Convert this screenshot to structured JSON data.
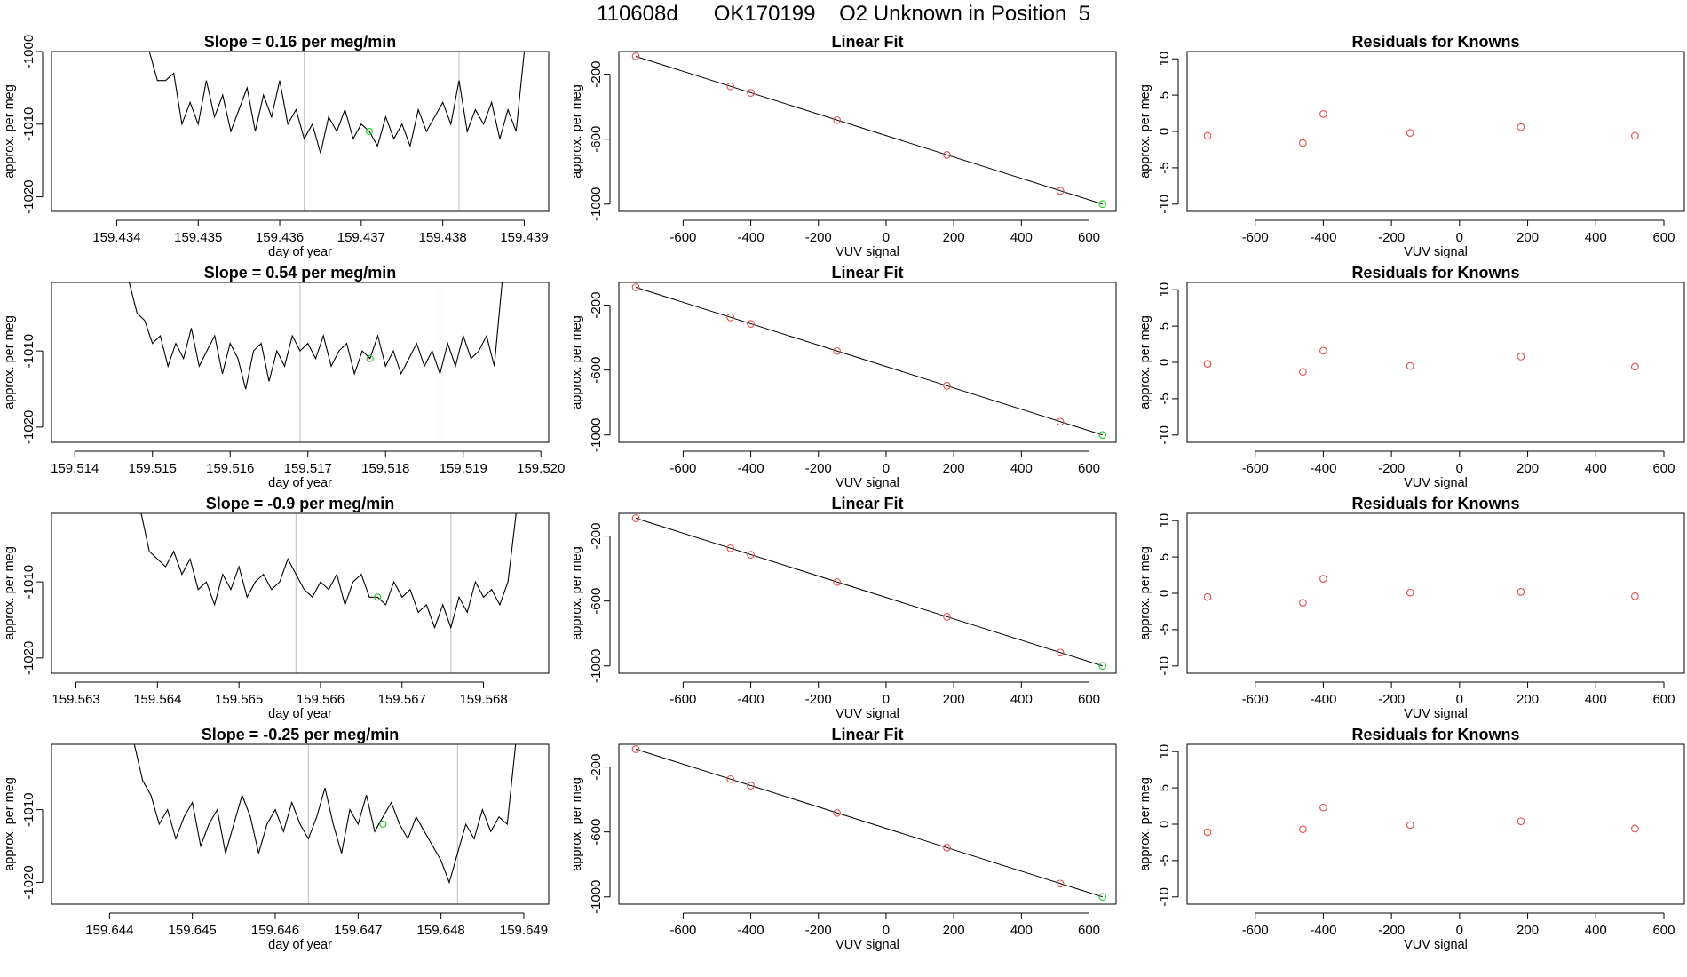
{
  "page_title": "110608d      OK170199    O2 Unknown in Position  5",
  "colors": {
    "line": "#000000",
    "known_point": "#e0504a",
    "unknown_point": "#33cc33",
    "event_line": "#c8c8c8",
    "axis": "#000000"
  },
  "chart_data": [
    {
      "type": "line",
      "panel": "time-series-1",
      "title": "Slope =  0.16  per meg/min",
      "xlabel": "day of year",
      "ylabel": "approx. per meg",
      "xlim": [
        159.4332,
        159.4393
      ],
      "ylim": [
        -1022,
        -1000
      ],
      "xticks": [
        159.434,
        159.435,
        159.436,
        159.437,
        159.438,
        159.439
      ],
      "xtick_labels": [
        "159.434",
        "159.435",
        "159.436",
        "159.437",
        "159.438",
        "159.439"
      ],
      "yticks": [
        -1020,
        -1010,
        -1000
      ],
      "ytick_labels": [
        "-1020",
        "-1010",
        "-1000"
      ],
      "event_lines": [
        159.4363,
        159.4382
      ],
      "unknown_point": {
        "x": 159.4371,
        "y": -1011
      },
      "x": [
        159.4344,
        159.4345,
        159.4346,
        159.4347,
        159.4348,
        159.4349,
        159.435,
        159.4351,
        159.4352,
        159.4353,
        159.4354,
        159.4355,
        159.4356,
        159.4357,
        159.4358,
        159.4359,
        159.436,
        159.4361,
        159.4362,
        159.4363,
        159.4364,
        159.4365,
        159.4366,
        159.4367,
        159.4368,
        159.4369,
        159.437,
        159.4371,
        159.4372,
        159.4373,
        159.4374,
        159.4375,
        159.4376,
        159.4377,
        159.4378,
        159.4379,
        159.438,
        159.4381,
        159.4382,
        159.4383,
        159.4384,
        159.4385,
        159.4386,
        159.4387,
        159.4388,
        159.4389,
        159.439
      ],
      "y": [
        -1000,
        -1004,
        -1004,
        -1003,
        -1010,
        -1007,
        -1010,
        -1004,
        -1009,
        -1006,
        -1011,
        -1008,
        -1005,
        -1011,
        -1006,
        -1009,
        -1004,
        -1010,
        -1008,
        -1012,
        -1010,
        -1014,
        -1009,
        -1011,
        -1008,
        -1012,
        -1010,
        -1011,
        -1013,
        -1009,
        -1012,
        -1010,
        -1013,
        -1008,
        -1011,
        -1009,
        -1007,
        -1010,
        -1004,
        -1011,
        -1008,
        -1010,
        -1007,
        -1012,
        -1008,
        -1011,
        -1000
      ]
    },
    {
      "type": "line",
      "panel": "time-series-2",
      "title": "Slope =  0.54  per meg/min",
      "xlabel": "day of year",
      "ylabel": "approx. per meg",
      "xlim": [
        159.5137,
        159.5201
      ],
      "ylim": [
        -1022,
        -1001
      ],
      "xticks": [
        159.514,
        159.515,
        159.516,
        159.517,
        159.518,
        159.519,
        159.52
      ],
      "xtick_labels": [
        "159.514",
        "159.515",
        "159.516",
        "159.517",
        "159.518",
        "159.519",
        "159.520"
      ],
      "yticks": [
        -1020,
        -1010
      ],
      "ytick_labels": [
        "-1020",
        "-1010"
      ],
      "event_lines": [
        159.5169,
        159.5187
      ],
      "unknown_point": {
        "x": 159.5178,
        "y": -1011
      },
      "x": [
        159.5147,
        159.5148,
        159.5149,
        159.515,
        159.5151,
        159.5152,
        159.5153,
        159.5154,
        159.5155,
        159.5156,
        159.5157,
        159.5158,
        159.5159,
        159.516,
        159.5161,
        159.5162,
        159.5163,
        159.5164,
        159.5165,
        159.5166,
        159.5167,
        159.5168,
        159.5169,
        159.517,
        159.5171,
        159.5172,
        159.5173,
        159.5174,
        159.5175,
        159.5176,
        159.5177,
        159.5178,
        159.5179,
        159.518,
        159.5181,
        159.5182,
        159.5183,
        159.5184,
        159.5185,
        159.5186,
        159.5187,
        159.5188,
        159.5189,
        159.519,
        159.5191,
        159.5192,
        159.5193,
        159.5194,
        159.5195
      ],
      "y": [
        -1001,
        -1005,
        -1006,
        -1009,
        -1008,
        -1012,
        -1009,
        -1011,
        -1007,
        -1012,
        -1010,
        -1008,
        -1013,
        -1009,
        -1011,
        -1015,
        -1010,
        -1009,
        -1014,
        -1010,
        -1012,
        -1008,
        -1010,
        -1009,
        -1011,
        -1008,
        -1012,
        -1010,
        -1009,
        -1013,
        -1010,
        -1011,
        -1008,
        -1012,
        -1010,
        -1013,
        -1011,
        -1009,
        -1012,
        -1010,
        -1013,
        -1009,
        -1012,
        -1008,
        -1011,
        -1010,
        -1008,
        -1012,
        -1001
      ]
    },
    {
      "type": "line",
      "panel": "time-series-3",
      "title": "Slope =  -0.9  per meg/min",
      "xlabel": "day of year",
      "ylabel": "approx. per meg",
      "xlim": [
        159.5627,
        159.5688
      ],
      "ylim": [
        -1022,
        -1001
      ],
      "xticks": [
        159.563,
        159.564,
        159.565,
        159.566,
        159.567,
        159.568
      ],
      "xtick_labels": [
        "159.563",
        "159.564",
        "159.565",
        "159.566",
        "159.567",
        "159.568"
      ],
      "yticks": [
        -1020,
        -1010
      ],
      "ytick_labels": [
        "-1020",
        "-1010"
      ],
      "event_lines": [
        159.5657,
        159.5676
      ],
      "unknown_point": {
        "x": 159.5667,
        "y": -1012
      },
      "x": [
        159.5638,
        159.5639,
        159.564,
        159.5641,
        159.5642,
        159.5643,
        159.5644,
        159.5645,
        159.5646,
        159.5647,
        159.5648,
        159.5649,
        159.565,
        159.5651,
        159.5652,
        159.5653,
        159.5654,
        159.5655,
        159.5656,
        159.5657,
        159.5658,
        159.5659,
        159.566,
        159.5661,
        159.5662,
        159.5663,
        159.5664,
        159.5665,
        159.5666,
        159.5667,
        159.5668,
        159.5669,
        159.567,
        159.5671,
        159.5672,
        159.5673,
        159.5674,
        159.5675,
        159.5676,
        159.5677,
        159.5678,
        159.5679,
        159.568,
        159.5681,
        159.5682,
        159.5683,
        159.5684
      ],
      "y": [
        -1001,
        -1006,
        -1007,
        -1008,
        -1006,
        -1009,
        -1007,
        -1011,
        -1010,
        -1013,
        -1009,
        -1011,
        -1008,
        -1012,
        -1010,
        -1009,
        -1011,
        -1010,
        -1007,
        -1009,
        -1011,
        -1012,
        -1010,
        -1011,
        -1009,
        -1013,
        -1010,
        -1009,
        -1012,
        -1012,
        -1013,
        -1010,
        -1012,
        -1011,
        -1014,
        -1013,
        -1016,
        -1013,
        -1016,
        -1012,
        -1014,
        -1010,
        -1012,
        -1011,
        -1013,
        -1010,
        -1001
      ]
    },
    {
      "type": "line",
      "panel": "time-series-4",
      "title": "Slope =  -0.25  per meg/min",
      "xlabel": "day of year",
      "ylabel": "approx. per meg",
      "xlim": [
        159.6433,
        159.6493
      ],
      "ylim": [
        -1023,
        -1001
      ],
      "xticks": [
        159.644,
        159.645,
        159.646,
        159.647,
        159.648,
        159.649
      ],
      "xtick_labels": [
        "159.644",
        "159.645",
        "159.646",
        "159.647",
        "159.648",
        "159.649"
      ],
      "yticks": [
        -1020,
        -1010
      ],
      "ytick_labels": [
        "-1020",
        "-1010"
      ],
      "event_lines": [
        159.6464,
        159.6482
      ],
      "unknown_point": {
        "x": 159.6473,
        "y": -1012
      },
      "x": [
        159.6443,
        159.6444,
        159.6445,
        159.6446,
        159.6447,
        159.6448,
        159.6449,
        159.645,
        159.6451,
        159.6452,
        159.6453,
        159.6454,
        159.6455,
        159.6456,
        159.6457,
        159.6458,
        159.6459,
        159.646,
        159.6461,
        159.6462,
        159.6463,
        159.6464,
        159.6465,
        159.6466,
        159.6467,
        159.6468,
        159.6469,
        159.647,
        159.6471,
        159.6472,
        159.6473,
        159.6474,
        159.6475,
        159.6476,
        159.6477,
        159.6478,
        159.6479,
        159.648,
        159.6481,
        159.6482,
        159.6483,
        159.6484,
        159.6485,
        159.6486,
        159.6487,
        159.6488,
        159.6489
      ],
      "y": [
        -1001,
        -1006,
        -1008,
        -1012,
        -1010,
        -1014,
        -1011,
        -1009,
        -1015,
        -1012,
        -1010,
        -1016,
        -1012,
        -1008,
        -1011,
        -1016,
        -1012,
        -1010,
        -1013,
        -1009,
        -1012,
        -1014,
        -1011,
        -1007,
        -1012,
        -1016,
        -1010,
        -1012,
        -1008,
        -1013,
        -1011,
        -1009,
        -1012,
        -1014,
        -1011,
        -1013,
        -1015,
        -1017,
        -1020,
        -1016,
        -1012,
        -1014,
        -1010,
        -1013,
        -1011,
        -1012,
        -1001
      ]
    },
    {
      "type": "scatter",
      "panel": "linear-fit-1",
      "title": "Linear Fit",
      "xlabel": "VUV signal",
      "ylabel": "approx. per meg",
      "xlim": [
        -790,
        680
      ],
      "ylim": [
        -1045,
        -60
      ],
      "xticks": [
        -600,
        -400,
        -200,
        0,
        200,
        400,
        600
      ],
      "xtick_labels": [
        "-600",
        "-400",
        "-200",
        "0",
        "200",
        "400",
        "600"
      ],
      "yticks": [
        -1000,
        -600,
        -200
      ],
      "ytick_labels": [
        "-1000",
        "-600",
        "-200"
      ],
      "fit_line": {
        "x": [
          -740,
          640
        ],
        "y": [
          -90,
          -1000
        ]
      },
      "known_points": {
        "x": [
          -740,
          -460,
          -400,
          -145,
          180,
          515
        ],
        "y": [
          -90,
          -275,
          -315,
          -483,
          -697,
          -918
        ]
      },
      "unknown_points": {
        "x": [
          640
        ],
        "y": [
          -1000
        ]
      }
    },
    {
      "type": "scatter",
      "panel": "linear-fit-2",
      "title": "Linear Fit",
      "xlabel": "VUV signal",
      "ylabel": "approx. per meg",
      "xlim": [
        -790,
        680
      ],
      "ylim": [
        -1045,
        -60
      ],
      "xticks": [
        -600,
        -400,
        -200,
        0,
        200,
        400,
        600
      ],
      "xtick_labels": [
        "-600",
        "-400",
        "-200",
        "0",
        "200",
        "400",
        "600"
      ],
      "yticks": [
        -1000,
        -600,
        -200
      ],
      "ytick_labels": [
        "-1000",
        "-600",
        "-200"
      ],
      "fit_line": {
        "x": [
          -740,
          640
        ],
        "y": [
          -90,
          -1000
        ]
      },
      "known_points": {
        "x": [
          -740,
          -460,
          -400,
          -145,
          180,
          515
        ],
        "y": [
          -90,
          -275,
          -315,
          -483,
          -697,
          -918
        ]
      },
      "unknown_points": {
        "x": [
          640
        ],
        "y": [
          -1000
        ]
      }
    },
    {
      "type": "scatter",
      "panel": "linear-fit-3",
      "title": "Linear Fit",
      "xlabel": "VUV signal",
      "ylabel": "approx. per meg",
      "xlim": [
        -790,
        680
      ],
      "ylim": [
        -1045,
        -60
      ],
      "xticks": [
        -600,
        -400,
        -200,
        0,
        200,
        400,
        600
      ],
      "xtick_labels": [
        "-600",
        "-400",
        "-200",
        "0",
        "200",
        "400",
        "600"
      ],
      "yticks": [
        -1000,
        -600,
        -200
      ],
      "ytick_labels": [
        "-1000",
        "-600",
        "-200"
      ],
      "fit_line": {
        "x": [
          -740,
          640
        ],
        "y": [
          -90,
          -1000
        ]
      },
      "known_points": {
        "x": [
          -740,
          -460,
          -400,
          -145,
          180,
          515
        ],
        "y": [
          -90,
          -275,
          -315,
          -483,
          -697,
          -918
        ]
      },
      "unknown_points": {
        "x": [
          640
        ],
        "y": [
          -1000
        ]
      }
    },
    {
      "type": "scatter",
      "panel": "linear-fit-4",
      "title": "Linear Fit",
      "xlabel": "VUV signal",
      "ylabel": "approx. per meg",
      "xlim": [
        -790,
        680
      ],
      "ylim": [
        -1045,
        -60
      ],
      "xticks": [
        -600,
        -400,
        -200,
        0,
        200,
        400,
        600
      ],
      "xtick_labels": [
        "-600",
        "-400",
        "-200",
        "0",
        "200",
        "400",
        "600"
      ],
      "yticks": [
        -1000,
        -600,
        -200
      ],
      "ytick_labels": [
        "-1000",
        "-600",
        "-200"
      ],
      "fit_line": {
        "x": [
          -740,
          640
        ],
        "y": [
          -90,
          -1000
        ]
      },
      "known_points": {
        "x": [
          -740,
          -460,
          -400,
          -145,
          180,
          515
        ],
        "y": [
          -90,
          -275,
          -315,
          -483,
          -697,
          -918
        ]
      },
      "unknown_points": {
        "x": [
          640
        ],
        "y": [
          -1000
        ]
      }
    },
    {
      "type": "scatter",
      "panel": "residuals-1",
      "title": "Residuals for Knowns",
      "xlabel": "VUV signal",
      "ylabel": "approx. per meg",
      "xlim": [
        -800,
        660
      ],
      "ylim": [
        -11,
        11
      ],
      "xticks": [
        -600,
        -400,
        -200,
        0,
        200,
        400,
        600
      ],
      "xtick_labels": [
        "-600",
        "-400",
        "-200",
        "0",
        "200",
        "400",
        "600"
      ],
      "yticks": [
        -10,
        -5,
        0,
        5,
        10
      ],
      "ytick_labels": [
        "-10",
        "-5",
        "0",
        "5",
        "10"
      ],
      "known_points": {
        "x": [
          -740,
          -460,
          -400,
          -145,
          180,
          515
        ],
        "y": [
          -0.6,
          -1.6,
          2.4,
          -0.2,
          0.6,
          -0.6
        ]
      }
    },
    {
      "type": "scatter",
      "panel": "residuals-2",
      "title": "Residuals for Knowns",
      "xlabel": "VUV signal",
      "ylabel": "approx. per meg",
      "xlim": [
        -800,
        660
      ],
      "ylim": [
        -11,
        11
      ],
      "xticks": [
        -600,
        -400,
        -200,
        0,
        200,
        400,
        600
      ],
      "xtick_labels": [
        "-600",
        "-400",
        "-200",
        "0",
        "200",
        "400",
        "600"
      ],
      "yticks": [
        -10,
        -5,
        0,
        5,
        10
      ],
      "ytick_labels": [
        "-10",
        "-5",
        "0",
        "5",
        "10"
      ],
      "known_points": {
        "x": [
          -740,
          -460,
          -400,
          -145,
          180,
          515
        ],
        "y": [
          -0.2,
          -1.3,
          1.6,
          -0.5,
          0.8,
          -0.6
        ]
      }
    },
    {
      "type": "scatter",
      "panel": "residuals-3",
      "title": "Residuals for Knowns",
      "xlabel": "VUV signal",
      "ylabel": "approx. per meg",
      "xlim": [
        -800,
        660
      ],
      "ylim": [
        -11,
        11
      ],
      "xticks": [
        -600,
        -400,
        -200,
        0,
        200,
        400,
        600
      ],
      "xtick_labels": [
        "-600",
        "-400",
        "-200",
        "0",
        "200",
        "400",
        "600"
      ],
      "yticks": [
        -10,
        -5,
        0,
        5,
        10
      ],
      "ytick_labels": [
        "-10",
        "-5",
        "0",
        "5",
        "10"
      ],
      "known_points": {
        "x": [
          -740,
          -460,
          -400,
          -145,
          180,
          515
        ],
        "y": [
          -0.5,
          -1.3,
          2.0,
          0.1,
          0.2,
          -0.4
        ]
      }
    },
    {
      "type": "scatter",
      "panel": "residuals-4",
      "title": "Residuals for Knowns",
      "xlabel": "VUV signal",
      "ylabel": "approx. per meg",
      "xlim": [
        -800,
        660
      ],
      "ylim": [
        -11,
        11
      ],
      "xticks": [
        -600,
        -400,
        -200,
        0,
        200,
        400,
        600
      ],
      "xtick_labels": [
        "-600",
        "-400",
        "-200",
        "0",
        "200",
        "400",
        "600"
      ],
      "yticks": [
        -10,
        -5,
        0,
        5,
        10
      ],
      "ytick_labels": [
        "-10",
        "-5",
        "0",
        "5",
        "10"
      ],
      "known_points": {
        "x": [
          -740,
          -460,
          -400,
          -145,
          180,
          515
        ],
        "y": [
          -1.1,
          -0.7,
          2.3,
          -0.1,
          0.4,
          -0.6
        ]
      }
    }
  ]
}
